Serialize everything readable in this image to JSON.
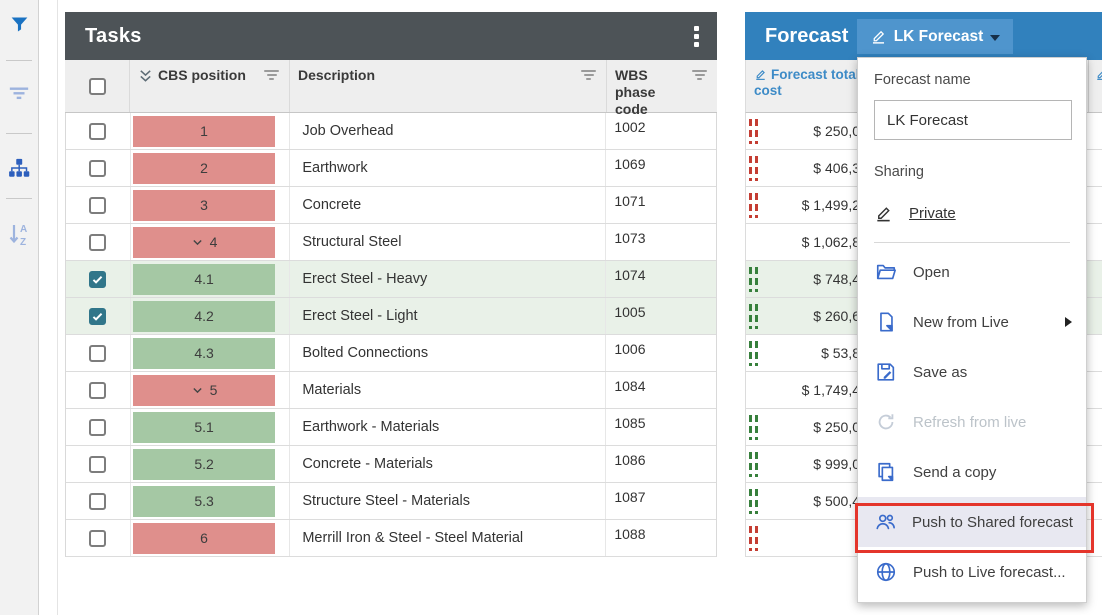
{
  "colors": {
    "tasks_header_bg": "#4d5357",
    "forecast_header_bg": "#3181bd",
    "forecast_button_bg": "#4f95cd",
    "red_cell": "#df8f8c",
    "green_cell": "#a5c8a4",
    "selected_row_bg": "#e9f1e8",
    "checkbox_checked": "#31768a",
    "column_link_blue": "#3d8bc7",
    "menu_icon_blue": "#3a6bcb",
    "annotation_red": "#e4352b",
    "indicator_red": "#c43d33",
    "indicator_green": "#37803c"
  },
  "sidebar": {
    "icons": [
      {
        "name": "filter-funnel-icon"
      },
      {
        "name": "filter-lines-icon"
      },
      {
        "name": "hierarchy-icon"
      },
      {
        "name": "sort-az-icon"
      }
    ]
  },
  "tasks": {
    "title": "Tasks",
    "columns": [
      {
        "label": "CBS position"
      },
      {
        "label": "Description"
      },
      {
        "label": "WBS phase code"
      }
    ],
    "rows": [
      {
        "position": "1",
        "color": "red",
        "expanded": false,
        "checked": false,
        "selected": false,
        "description": "Job Overhead",
        "wbs": "1002"
      },
      {
        "position": "2",
        "color": "red",
        "expanded": false,
        "checked": false,
        "selected": false,
        "description": "Earthwork",
        "wbs": "1069"
      },
      {
        "position": "3",
        "color": "red",
        "expanded": false,
        "checked": false,
        "selected": false,
        "description": "Concrete",
        "wbs": "1071"
      },
      {
        "position": "4",
        "color": "red",
        "expanded": true,
        "checked": false,
        "selected": false,
        "description": "Structural Steel",
        "wbs": "1073"
      },
      {
        "position": "4.1",
        "color": "green",
        "expanded": false,
        "checked": true,
        "selected": true,
        "description": "Erect Steel - Heavy",
        "wbs": "1074"
      },
      {
        "position": "4.2",
        "color": "green",
        "expanded": false,
        "checked": true,
        "selected": true,
        "description": "Erect Steel - Light",
        "wbs": "1005"
      },
      {
        "position": "4.3",
        "color": "green",
        "expanded": false,
        "checked": false,
        "selected": false,
        "description": "Bolted Connections",
        "wbs": "1006"
      },
      {
        "position": "5",
        "color": "red",
        "expanded": true,
        "checked": false,
        "selected": false,
        "description": "Materials",
        "wbs": "1084"
      },
      {
        "position": "5.1",
        "color": "green",
        "expanded": false,
        "checked": false,
        "selected": false,
        "description": "Earthwork - Materials",
        "wbs": "1085"
      },
      {
        "position": "5.2",
        "color": "green",
        "expanded": false,
        "checked": false,
        "selected": false,
        "description": "Concrete - Materials",
        "wbs": "1086"
      },
      {
        "position": "5.3",
        "color": "green",
        "expanded": false,
        "checked": false,
        "selected": false,
        "description": "Structure Steel - Materials",
        "wbs": "1087"
      },
      {
        "position": "6",
        "color": "red",
        "expanded": false,
        "checked": false,
        "selected": false,
        "description": "Merrill Iron & Steel - Steel Material",
        "wbs": "1088"
      }
    ]
  },
  "forecast": {
    "title": "Forecast",
    "name_button": "LK Forecast",
    "column": "Forecast total cost",
    "partial_column_label": "to",
    "rows": [
      {
        "value": "$ 250,0",
        "indicator": "red",
        "selected": false
      },
      {
        "value": "$ 406,3",
        "indicator": "red",
        "selected": false
      },
      {
        "value": "$ 1,499,2",
        "indicator": "red",
        "selected": false
      },
      {
        "value": "$ 1,062,8",
        "indicator": "none",
        "selected": false
      },
      {
        "value": "$ 748,4",
        "indicator": "green",
        "selected": true
      },
      {
        "value": "$ 260,6",
        "indicator": "green",
        "selected": true
      },
      {
        "value": "$ 53,8",
        "indicator": "green",
        "selected": false
      },
      {
        "value": "$ 1,749,4",
        "indicator": "none",
        "selected": false
      },
      {
        "value": "$ 250,0",
        "indicator": "green",
        "selected": false
      },
      {
        "value": "$ 999,0",
        "indicator": "green",
        "selected": false
      },
      {
        "value": "$ 500,4",
        "indicator": "green",
        "selected": false
      },
      {
        "value": "",
        "indicator": "red",
        "selected": false
      }
    ]
  },
  "menu": {
    "name_label": "Forecast name",
    "name_value": "LK Forecast",
    "sharing_label": "Sharing",
    "sharing_value": "Private",
    "items": [
      {
        "label": "Open",
        "icon": "folder-open",
        "disabled": false,
        "highlighted": false,
        "submenu": false
      },
      {
        "label": "New from Live",
        "icon": "file-new",
        "disabled": false,
        "highlighted": false,
        "submenu": true
      },
      {
        "label": "Save as",
        "icon": "save",
        "disabled": false,
        "highlighted": false,
        "submenu": false
      },
      {
        "label": "Refresh from live",
        "icon": "refresh",
        "disabled": true,
        "highlighted": false,
        "submenu": false
      },
      {
        "label": "Send a copy",
        "icon": "copy",
        "disabled": false,
        "highlighted": false,
        "submenu": false
      },
      {
        "label": "Push to Shared forecast",
        "icon": "people",
        "disabled": false,
        "highlighted": true,
        "submenu": false
      },
      {
        "label": "Push to Live forecast...",
        "icon": "globe",
        "disabled": false,
        "highlighted": false,
        "submenu": false
      }
    ]
  }
}
